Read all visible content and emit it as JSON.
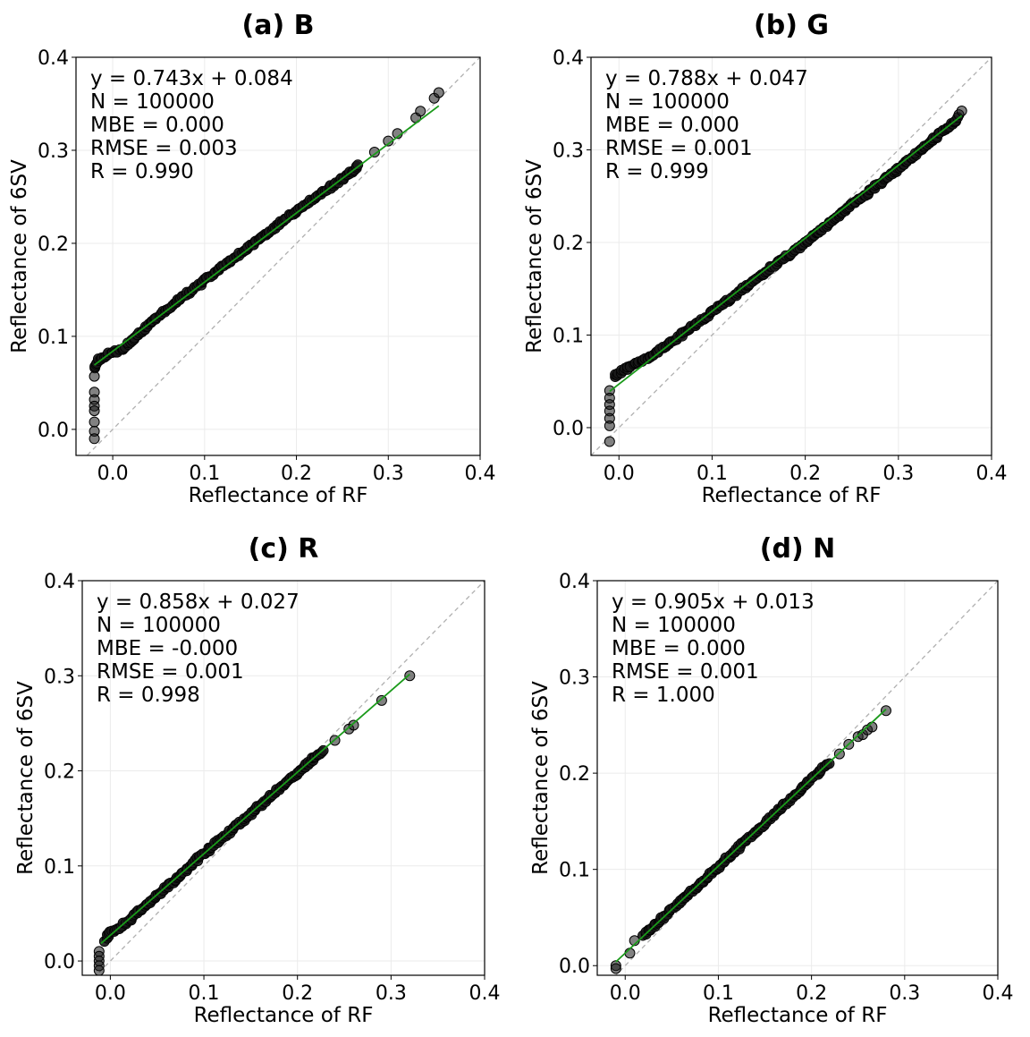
{
  "colors": {
    "points": "#1a1a1a",
    "points_edge": "#000000",
    "fit_line": "#1a9a1a",
    "one_to_one": "#b0b0b0",
    "grid": "#ebebeb"
  },
  "chart_data": [
    {
      "type": "scatter",
      "title": "(a) B",
      "xlabel": "Reflectance of RF",
      "ylabel": "Reflectance of 6SV",
      "xlim": [
        -0.04,
        0.4
      ],
      "ylim": [
        -0.028,
        0.4
      ],
      "xticks": [
        "0.0",
        "0.1",
        "0.2",
        "0.3",
        "0.4"
      ],
      "yticks": [
        "0.0",
        "0.1",
        "0.2",
        "0.3",
        "0.4"
      ],
      "grid": true,
      "stats": [
        "y = 0.743x + 0.084",
        "N = 100000",
        "MBE = 0.000",
        "RMSE = 0.003",
        "R = 0.990"
      ],
      "fit": {
        "slope": 0.743,
        "intercept": 0.084,
        "x_range": [
          -0.02,
          0.355
        ]
      },
      "trend_points": [
        [
          -0.02,
          0.065
        ],
        [
          -0.015,
          0.075
        ],
        [
          0.0,
          0.083
        ],
        [
          0.01,
          0.085
        ],
        [
          0.02,
          0.095
        ],
        [
          0.05,
          0.122
        ],
        [
          0.1,
          0.16
        ],
        [
          0.15,
          0.197
        ],
        [
          0.2,
          0.235
        ],
        [
          0.25,
          0.27
        ],
        [
          0.27,
          0.285
        ]
      ],
      "outliers": [
        [
          -0.02,
          0.057
        ],
        [
          -0.02,
          0.04
        ],
        [
          -0.02,
          0.032
        ],
        [
          -0.02,
          0.025
        ],
        [
          -0.02,
          0.02
        ],
        [
          -0.02,
          0.008
        ],
        [
          -0.02,
          -0.002
        ],
        [
          -0.02,
          -0.01
        ],
        [
          0.285,
          0.298
        ],
        [
          0.3,
          0.31
        ],
        [
          0.31,
          0.318
        ],
        [
          0.33,
          0.335
        ],
        [
          0.335,
          0.342
        ],
        [
          0.35,
          0.356
        ],
        [
          0.355,
          0.362
        ]
      ]
    },
    {
      "type": "scatter",
      "title": "(b) G",
      "xlabel": "Reflectance of RF",
      "ylabel": "Reflectance of 6SV",
      "xlim": [
        -0.03,
        0.4
      ],
      "ylim": [
        -0.03,
        0.4
      ],
      "xticks": [
        "0.0",
        "0.1",
        "0.2",
        "0.3",
        "0.4"
      ],
      "yticks": [
        "0.0",
        "0.1",
        "0.2",
        "0.3",
        "0.4"
      ],
      "grid": true,
      "stats": [
        "y = 0.788x + 0.047",
        "N = 100000",
        "MBE = 0.000",
        "RMSE = 0.001",
        "R = 0.999"
      ],
      "fit": {
        "slope": 0.788,
        "intercept": 0.047,
        "x_range": [
          -0.01,
          0.368
        ]
      },
      "trend_points": [
        [
          -0.005,
          0.055
        ],
        [
          0.005,
          0.062
        ],
        [
          0.02,
          0.07
        ],
        [
          0.04,
          0.08
        ],
        [
          0.08,
          0.11
        ],
        [
          0.12,
          0.14
        ],
        [
          0.16,
          0.17
        ],
        [
          0.2,
          0.2
        ],
        [
          0.25,
          0.24
        ],
        [
          0.3,
          0.28
        ],
        [
          0.35,
          0.322
        ],
        [
          0.365,
          0.335
        ]
      ],
      "outliers": [
        [
          -0.01,
          0.04
        ],
        [
          -0.01,
          0.032
        ],
        [
          -0.01,
          0.025
        ],
        [
          -0.01,
          0.018
        ],
        [
          -0.01,
          0.01
        ],
        [
          -0.01,
          0.002
        ],
        [
          -0.01,
          -0.015
        ],
        [
          0.365,
          0.338
        ],
        [
          0.368,
          0.342
        ]
      ]
    },
    {
      "type": "scatter",
      "title": "(c) R",
      "xlabel": "Reflectance of RF",
      "ylabel": "Reflectance of 6SV",
      "xlim": [
        -0.03,
        0.4
      ],
      "ylim": [
        -0.015,
        0.4
      ],
      "xticks": [
        "0.0",
        "0.1",
        "0.2",
        "0.3",
        "0.4"
      ],
      "yticks": [
        "0.0",
        "0.1",
        "0.2",
        "0.3",
        "0.4"
      ],
      "grid": true,
      "stats": [
        "y = 0.858x + 0.027",
        "N = 100000",
        "MBE = -0.000",
        "RMSE = 0.001",
        "R = 0.998"
      ],
      "fit": {
        "slope": 0.858,
        "intercept": 0.027,
        "x_range": [
          -0.01,
          0.32
        ]
      },
      "trend_points": [
        [
          -0.005,
          0.022
        ],
        [
          0.0,
          0.03
        ],
        [
          0.01,
          0.035
        ],
        [
          0.05,
          0.068
        ],
        [
          0.1,
          0.113
        ],
        [
          0.15,
          0.155
        ],
        [
          0.2,
          0.198
        ],
        [
          0.22,
          0.215
        ],
        [
          0.23,
          0.222
        ]
      ],
      "outliers": [
        [
          -0.012,
          0.01
        ],
        [
          -0.012,
          0.005
        ],
        [
          -0.012,
          0.0
        ],
        [
          -0.012,
          -0.005
        ],
        [
          -0.012,
          -0.01
        ],
        [
          0.24,
          0.232
        ],
        [
          0.255,
          0.244
        ],
        [
          0.26,
          0.248
        ],
        [
          0.29,
          0.274
        ],
        [
          0.32,
          0.3
        ]
      ]
    },
    {
      "type": "scatter",
      "title": "(d) N",
      "xlabel": "Reflectance of RF",
      "ylabel": "Reflectance of 6SV",
      "xlim": [
        -0.03,
        0.4
      ],
      "ylim": [
        -0.01,
        0.4
      ],
      "xticks": [
        "0.0",
        "0.1",
        "0.2",
        "0.3",
        "0.4"
      ],
      "yticks": [
        "0.0",
        "0.1",
        "0.2",
        "0.3",
        "0.4"
      ],
      "grid": true,
      "stats": [
        "y = 0.905x + 0.013",
        "N = 100000",
        "MBE = 0.000",
        "RMSE = 0.001",
        "R = 1.000"
      ],
      "fit": {
        "slope": 0.905,
        "intercept": 0.013,
        "x_range": [
          -0.01,
          0.28
        ]
      },
      "trend_points": [
        [
          0.02,
          0.032
        ],
        [
          0.05,
          0.058
        ],
        [
          0.1,
          0.103
        ],
        [
          0.15,
          0.148
        ],
        [
          0.2,
          0.194
        ],
        [
          0.22,
          0.212
        ]
      ],
      "outliers": [
        [
          -0.01,
          0.0
        ],
        [
          -0.01,
          -0.003
        ],
        [
          0.005,
          0.013
        ],
        [
          0.01,
          0.026
        ],
        [
          0.23,
          0.22
        ],
        [
          0.24,
          0.23
        ],
        [
          0.25,
          0.238
        ],
        [
          0.255,
          0.24
        ],
        [
          0.26,
          0.245
        ],
        [
          0.265,
          0.248
        ],
        [
          0.28,
          0.265
        ]
      ]
    }
  ]
}
